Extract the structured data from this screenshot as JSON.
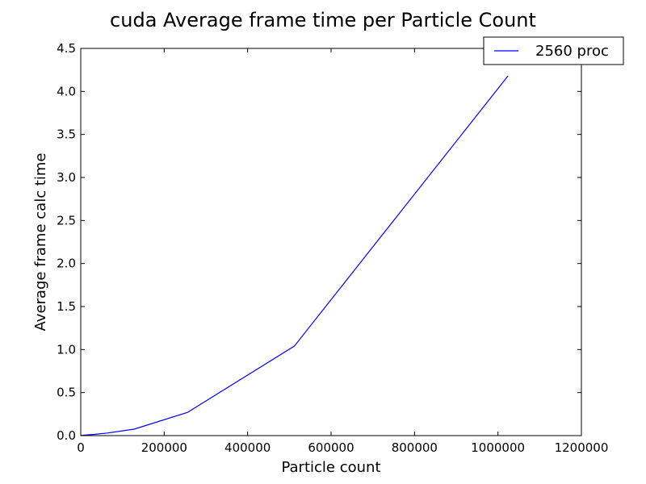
{
  "chart_data": {
    "type": "line",
    "title": "cuda Average frame time per Particle Count",
    "xlabel": "Particle count",
    "ylabel": "Average frame calc time",
    "xlim": [
      0,
      1200000
    ],
    "ylim": [
      0,
      4.5
    ],
    "xticks": [
      0,
      200000,
      400000,
      600000,
      800000,
      1000000,
      1200000
    ],
    "xtick_labels": [
      "0",
      "200000",
      "400000",
      "600000",
      "800000",
      "1000000",
      "1200000"
    ],
    "yticks": [
      0.0,
      0.5,
      1.0,
      1.5,
      2.0,
      2.5,
      3.0,
      3.5,
      4.0,
      4.5
    ],
    "ytick_labels": [
      "0.0",
      "0.5",
      "1.0",
      "1.5",
      "2.0",
      "2.5",
      "3.0",
      "3.5",
      "4.0",
      "4.5"
    ],
    "grid": false,
    "legend_position": "top-right",
    "series": [
      {
        "name": "2560 proc",
        "color": "#0000ff",
        "x": [
          1000,
          4000,
          16000,
          32000,
          64000,
          128000,
          256000,
          512000,
          1024000
        ],
        "y": [
          0.002,
          0.004,
          0.008,
          0.014,
          0.03,
          0.075,
          0.27,
          1.04,
          4.18
        ]
      }
    ]
  }
}
